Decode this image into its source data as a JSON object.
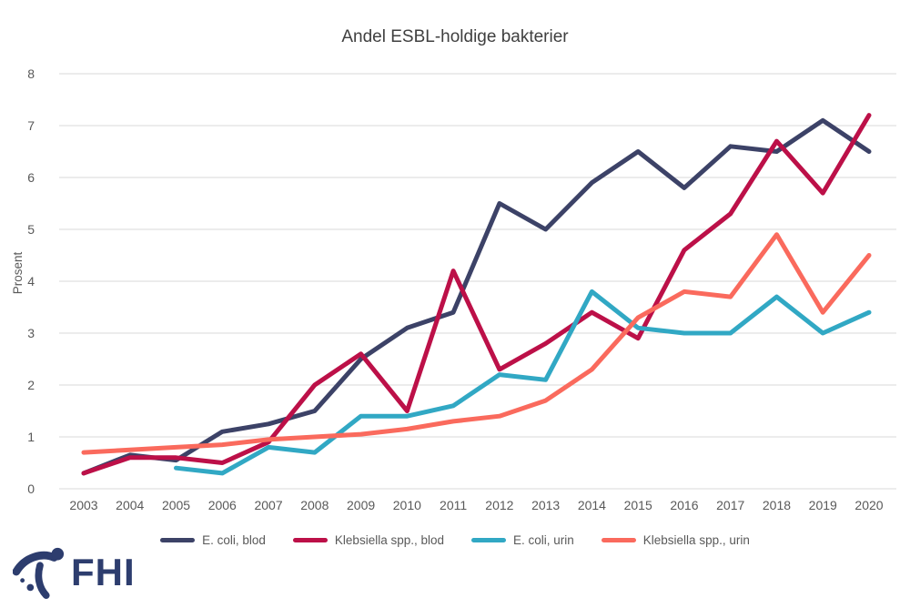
{
  "title": "Andel ESBL-holdige bakterier",
  "branding": {
    "logo_text": "FHI"
  },
  "colors": {
    "grid": "#d9d9d9",
    "axis_text": "#595959",
    "title_text": "#3f3f3f",
    "logo": "#2d3d6e"
  },
  "chart_data": {
    "type": "line",
    "title": "Andel ESBL-holdige bakterier",
    "xlabel": "",
    "ylabel": "Prosent",
    "ylim": [
      0,
      8
    ],
    "yticks": [
      0,
      1,
      2,
      3,
      4,
      5,
      6,
      7,
      8
    ],
    "grid": "horizontal",
    "legend_position": "bottom",
    "x": [
      2003,
      2004,
      2005,
      2006,
      2007,
      2008,
      2009,
      2010,
      2011,
      2012,
      2013,
      2014,
      2015,
      2016,
      2017,
      2018,
      2019,
      2020
    ],
    "series": [
      {
        "name": "E. coli, blod",
        "color": "#3c4267",
        "values": [
          0.3,
          0.65,
          0.55,
          1.1,
          1.25,
          1.5,
          2.5,
          3.1,
          3.4,
          5.5,
          5.0,
          5.9,
          6.5,
          5.8,
          6.6,
          6.5,
          7.1,
          6.5
        ]
      },
      {
        "name": "Klebsiella spp., blod",
        "color": "#bc1048",
        "values": [
          0.3,
          0.6,
          0.6,
          0.5,
          0.9,
          2.0,
          2.6,
          1.5,
          4.2,
          2.3,
          2.8,
          3.4,
          2.9,
          4.6,
          5.3,
          6.7,
          5.7,
          7.2
        ]
      },
      {
        "name": "E. coli, urin",
        "color": "#31a8c4",
        "values": [
          null,
          null,
          0.4,
          0.3,
          0.8,
          0.7,
          1.4,
          1.4,
          1.6,
          2.2,
          2.1,
          3.8,
          3.1,
          3.0,
          3.0,
          3.7,
          3.0,
          3.4
        ]
      },
      {
        "name": "Klebsiella spp., urin",
        "color": "#fa6a5d",
        "values": [
          0.7,
          0.75,
          0.8,
          0.85,
          0.95,
          1.0,
          1.05,
          1.15,
          1.3,
          1.4,
          1.7,
          2.3,
          3.3,
          3.8,
          3.7,
          4.9,
          3.4,
          4.5
        ]
      }
    ]
  }
}
